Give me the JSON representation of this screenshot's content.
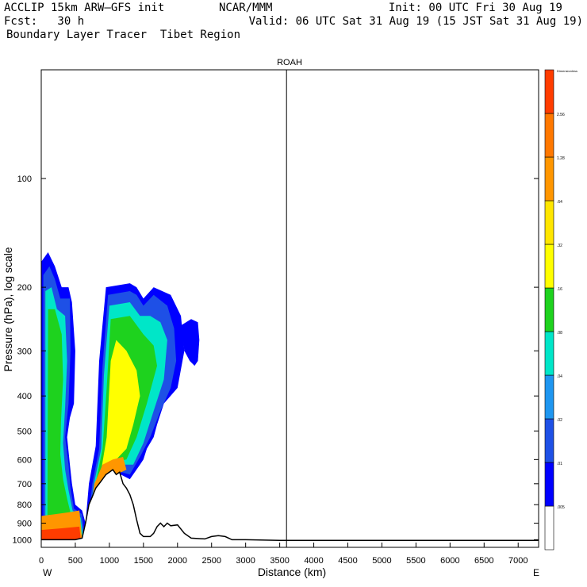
{
  "header": {
    "left_line1": "ACCLIP 15km ARW–GFS init",
    "center_line1": "NCAR/MMM",
    "right_line1": "Init: 00 UTC Fri 30 Aug 19",
    "left_line2": "Fcst:   30 h",
    "right_line2": "Valid: 06 UTC Sat 31 Aug 19 (15 JST Sat 31 Aug 19)",
    "left_line3": "Boundary Layer Tracer  Tibet Region"
  },
  "chart_data": {
    "type": "heatmap",
    "title": "ROAH",
    "xlabel": "Distance (km)",
    "ylabel": "Pressure (hPa), log scale",
    "xlim": [
      0,
      7300
    ],
    "ylim": [
      1050,
      50
    ],
    "y_scale": "log",
    "x_ticks": [
      0,
      500,
      1000,
      1500,
      2000,
      2500,
      3000,
      3500,
      4000,
      4500,
      5000,
      5500,
      6000,
      6500,
      7000
    ],
    "y_ticks": [
      100,
      200,
      300,
      400,
      500,
      600,
      700,
      800,
      900,
      1000
    ],
    "x_end_labels": [
      "W",
      "E"
    ],
    "marker_line_x": 3600,
    "colorbar": {
      "title": "Dimensionless",
      "levels": [
        ".005",
        ".01",
        ".02",
        ".04",
        ".08",
        ".16",
        ".32",
        ".64",
        "1.28",
        "2.56"
      ],
      "colors": [
        "#ffffff",
        "#0000ff",
        "#1e50e6",
        "#1e96f0",
        "#00e6c8",
        "#1ed21e",
        "#ffff00",
        "#ffe600",
        "#ff9600",
        "#ff7800",
        "#ff3c00"
      ]
    },
    "terrain": [
      [
        0,
        1000
      ],
      [
        200,
        1000
      ],
      [
        400,
        1000
      ],
      [
        500,
        1000
      ],
      [
        600,
        990
      ],
      [
        650,
        900
      ],
      [
        700,
        800
      ],
      [
        750,
        760
      ],
      [
        800,
        720
      ],
      [
        850,
        700
      ],
      [
        900,
        680
      ],
      [
        950,
        660
      ],
      [
        1000,
        650
      ],
      [
        1050,
        640
      ],
      [
        1100,
        660
      ],
      [
        1150,
        650
      ],
      [
        1200,
        700
      ],
      [
        1250,
        720
      ],
      [
        1300,
        750
      ],
      [
        1350,
        800
      ],
      [
        1400,
        880
      ],
      [
        1450,
        960
      ],
      [
        1500,
        980
      ],
      [
        1600,
        980
      ],
      [
        1650,
        960
      ],
      [
        1700,
        920
      ],
      [
        1750,
        900
      ],
      [
        1800,
        920
      ],
      [
        1850,
        900
      ],
      [
        1900,
        915
      ],
      [
        2000,
        910
      ],
      [
        2100,
        960
      ],
      [
        2200,
        990
      ],
      [
        2400,
        995
      ],
      [
        2500,
        980
      ],
      [
        2600,
        975
      ],
      [
        2700,
        980
      ],
      [
        2800,
        1000
      ],
      [
        3000,
        1000
      ],
      [
        3500,
        1005
      ],
      [
        4000,
        1005
      ],
      [
        5000,
        1005
      ],
      [
        6000,
        1005
      ],
      [
        7300,
        1005
      ]
    ]
  }
}
